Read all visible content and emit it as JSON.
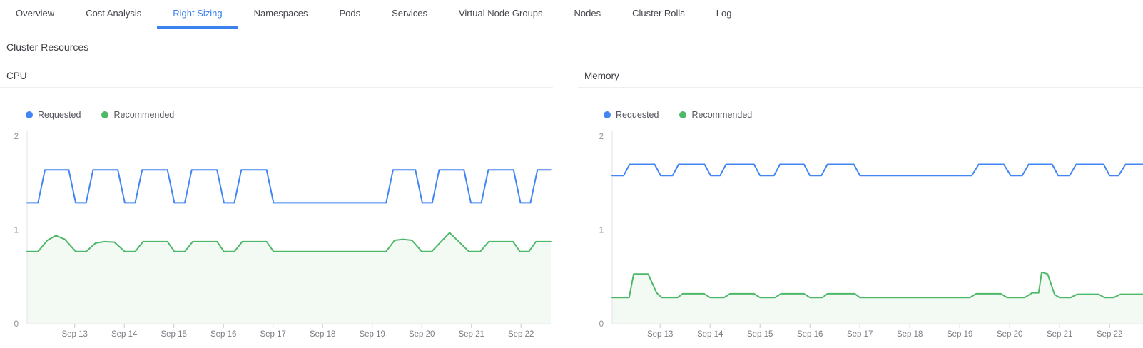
{
  "tab_bar": {
    "items": [
      {
        "label": "Overview",
        "active": false
      },
      {
        "label": "Cost Analysis",
        "active": false
      },
      {
        "label": "Right Sizing",
        "active": true
      },
      {
        "label": "Namespaces",
        "active": false
      },
      {
        "label": "Pods",
        "active": false
      },
      {
        "label": "Services",
        "active": false
      },
      {
        "label": "Virtual Node Groups",
        "active": false
      },
      {
        "label": "Nodes",
        "active": false
      },
      {
        "label": "Cluster Rolls",
        "active": false
      },
      {
        "label": "Log",
        "active": false
      }
    ],
    "active_color": "#3b82f0"
  },
  "section": {
    "title": "Cluster Resources"
  },
  "chart_data": [
    {
      "type": "line",
      "title": "CPU",
      "legend_position": "top-left",
      "grid": false,
      "ylim": [
        0,
        2
      ],
      "y_ticks": [
        {
          "value": 0,
          "label": "0"
        },
        {
          "value": 1,
          "label": "1"
        },
        {
          "value": 2,
          "label": "2"
        }
      ],
      "x_range": [
        12.04,
        22.6
      ],
      "x_ticks": [
        {
          "value": 13,
          "label": "Sep 13"
        },
        {
          "value": 14,
          "label": "Sep 14"
        },
        {
          "value": 15,
          "label": "Sep 15"
        },
        {
          "value": 16,
          "label": "Sep 16"
        },
        {
          "value": 17,
          "label": "Sep 17"
        },
        {
          "value": 18,
          "label": "Sep 18"
        },
        {
          "value": 19,
          "label": "Sep 19"
        },
        {
          "value": 20,
          "label": "Sep 20"
        },
        {
          "value": 21,
          "label": "Sep 21"
        },
        {
          "value": 22,
          "label": "Sep 22"
        }
      ],
      "series": [
        {
          "name": "Requested",
          "color": "#4285f4",
          "fill": false,
          "points": [
            [
              12.04,
              1.29
            ],
            [
              12.26,
              1.29
            ],
            [
              12.4,
              1.64
            ],
            [
              12.88,
              1.64
            ],
            [
              13.02,
              1.29
            ],
            [
              13.23,
              1.29
            ],
            [
              13.37,
              1.64
            ],
            [
              13.87,
              1.64
            ],
            [
              14.01,
              1.29
            ],
            [
              14.22,
              1.29
            ],
            [
              14.36,
              1.64
            ],
            [
              14.87,
              1.64
            ],
            [
              15.01,
              1.29
            ],
            [
              15.22,
              1.29
            ],
            [
              15.36,
              1.64
            ],
            [
              15.87,
              1.64
            ],
            [
              16.01,
              1.29
            ],
            [
              16.22,
              1.29
            ],
            [
              16.36,
              1.64
            ],
            [
              16.87,
              1.64
            ],
            [
              17.01,
              1.29
            ],
            [
              19.28,
              1.29
            ],
            [
              19.42,
              1.64
            ],
            [
              19.87,
              1.64
            ],
            [
              20.01,
              1.29
            ],
            [
              20.21,
              1.29
            ],
            [
              20.35,
              1.64
            ],
            [
              20.85,
              1.64
            ],
            [
              20.99,
              1.29
            ],
            [
              21.2,
              1.29
            ],
            [
              21.34,
              1.64
            ],
            [
              21.85,
              1.64
            ],
            [
              21.99,
              1.29
            ],
            [
              22.19,
              1.29
            ],
            [
              22.33,
              1.64
            ],
            [
              22.6,
              1.64
            ]
          ]
        },
        {
          "name": "Recommended",
          "color": "#4eb869",
          "fill": true,
          "fill_opacity": 0.07,
          "points": [
            [
              12.04,
              0.77
            ],
            [
              12.26,
              0.77
            ],
            [
              12.45,
              0.89
            ],
            [
              12.62,
              0.94
            ],
            [
              12.8,
              0.9
            ],
            [
              13.02,
              0.77
            ],
            [
              13.23,
              0.77
            ],
            [
              13.42,
              0.86
            ],
            [
              13.6,
              0.875
            ],
            [
              13.8,
              0.87
            ],
            [
              14.01,
              0.77
            ],
            [
              14.22,
              0.77
            ],
            [
              14.38,
              0.875
            ],
            [
              14.87,
              0.875
            ],
            [
              15.01,
              0.77
            ],
            [
              15.22,
              0.77
            ],
            [
              15.38,
              0.875
            ],
            [
              15.87,
              0.875
            ],
            [
              16.01,
              0.77
            ],
            [
              16.22,
              0.77
            ],
            [
              16.38,
              0.875
            ],
            [
              16.87,
              0.875
            ],
            [
              17.01,
              0.77
            ],
            [
              19.28,
              0.77
            ],
            [
              19.45,
              0.89
            ],
            [
              19.62,
              0.9
            ],
            [
              19.8,
              0.89
            ],
            [
              20.0,
              0.77
            ],
            [
              20.2,
              0.77
            ],
            [
              20.56,
              0.97
            ],
            [
              20.95,
              0.77
            ],
            [
              21.18,
              0.77
            ],
            [
              21.35,
              0.875
            ],
            [
              21.84,
              0.875
            ],
            [
              21.98,
              0.77
            ],
            [
              22.16,
              0.77
            ],
            [
              22.3,
              0.875
            ],
            [
              22.6,
              0.875
            ]
          ]
        }
      ]
    },
    {
      "type": "line",
      "title": "Memory",
      "legend_position": "top-left",
      "grid": false,
      "ylim": [
        0,
        2
      ],
      "y_ticks": [
        {
          "value": 0,
          "label": "0"
        },
        {
          "value": 1,
          "label": "1"
        },
        {
          "value": 2,
          "label": "2"
        }
      ],
      "x_range": [
        12.04,
        22.67
      ],
      "x_ticks": [
        {
          "value": 13,
          "label": "Sep 13"
        },
        {
          "value": 14,
          "label": "Sep 14"
        },
        {
          "value": 15,
          "label": "Sep 15"
        },
        {
          "value": 16,
          "label": "Sep 16"
        },
        {
          "value": 17,
          "label": "Sep 17"
        },
        {
          "value": 18,
          "label": "Sep 18"
        },
        {
          "value": 19,
          "label": "Sep 19"
        },
        {
          "value": 20,
          "label": "Sep 20"
        },
        {
          "value": 21,
          "label": "Sep 21"
        },
        {
          "value": 22,
          "label": "Sep 22"
        }
      ],
      "series": [
        {
          "name": "Requested",
          "color": "#4285f4",
          "fill": false,
          "points": [
            [
              12.04,
              1.58
            ],
            [
              12.27,
              1.58
            ],
            [
              12.39,
              1.7
            ],
            [
              12.89,
              1.7
            ],
            [
              13.01,
              1.58
            ],
            [
              13.25,
              1.58
            ],
            [
              13.37,
              1.7
            ],
            [
              13.89,
              1.7
            ],
            [
              14.01,
              1.58
            ],
            [
              14.2,
              1.58
            ],
            [
              14.32,
              1.7
            ],
            [
              14.88,
              1.7
            ],
            [
              15.0,
              1.58
            ],
            [
              15.28,
              1.58
            ],
            [
              15.4,
              1.7
            ],
            [
              15.88,
              1.7
            ],
            [
              16.0,
              1.58
            ],
            [
              16.23,
              1.58
            ],
            [
              16.35,
              1.7
            ],
            [
              16.88,
              1.7
            ],
            [
              17.0,
              1.58
            ],
            [
              19.24,
              1.58
            ],
            [
              19.38,
              1.7
            ],
            [
              19.88,
              1.7
            ],
            [
              20.02,
              1.58
            ],
            [
              20.25,
              1.58
            ],
            [
              20.38,
              1.7
            ],
            [
              20.85,
              1.7
            ],
            [
              20.97,
              1.58
            ],
            [
              21.2,
              1.58
            ],
            [
              21.33,
              1.7
            ],
            [
              21.88,
              1.7
            ],
            [
              22.0,
              1.58
            ],
            [
              22.18,
              1.58
            ],
            [
              22.32,
              1.7
            ],
            [
              22.67,
              1.7
            ]
          ]
        },
        {
          "name": "Recommended",
          "color": "#4eb869",
          "fill": true,
          "fill_opacity": 0.07,
          "points": [
            [
              12.04,
              0.28
            ],
            [
              12.38,
              0.28
            ],
            [
              12.47,
              0.53
            ],
            [
              12.76,
              0.53
            ],
            [
              12.93,
              0.33
            ],
            [
              13.03,
              0.28
            ],
            [
              13.35,
              0.28
            ],
            [
              13.45,
              0.32
            ],
            [
              13.88,
              0.32
            ],
            [
              14.0,
              0.28
            ],
            [
              14.28,
              0.28
            ],
            [
              14.4,
              0.32
            ],
            [
              14.88,
              0.32
            ],
            [
              15.0,
              0.28
            ],
            [
              15.3,
              0.28
            ],
            [
              15.42,
              0.32
            ],
            [
              15.88,
              0.32
            ],
            [
              16.0,
              0.28
            ],
            [
              16.25,
              0.28
            ],
            [
              16.35,
              0.32
            ],
            [
              16.9,
              0.32
            ],
            [
              17.0,
              0.28
            ],
            [
              19.2,
              0.28
            ],
            [
              19.33,
              0.32
            ],
            [
              19.82,
              0.32
            ],
            [
              19.95,
              0.28
            ],
            [
              20.3,
              0.28
            ],
            [
              20.45,
              0.33
            ],
            [
              20.58,
              0.33
            ],
            [
              20.64,
              0.55
            ],
            [
              20.76,
              0.53
            ],
            [
              20.9,
              0.31
            ],
            [
              21.0,
              0.28
            ],
            [
              21.22,
              0.28
            ],
            [
              21.35,
              0.315
            ],
            [
              21.78,
              0.315
            ],
            [
              21.9,
              0.28
            ],
            [
              22.08,
              0.28
            ],
            [
              22.22,
              0.315
            ],
            [
              22.67,
              0.315
            ]
          ]
        }
      ]
    }
  ],
  "axis_style": {
    "y_axis_line_color": "#e3e3e9",
    "x_axis_line_color": "#e8e8ec",
    "tick_color": "#c9c9d2",
    "y_label_color": "#8e8e98",
    "x_label_color": "#7b7b84"
  }
}
